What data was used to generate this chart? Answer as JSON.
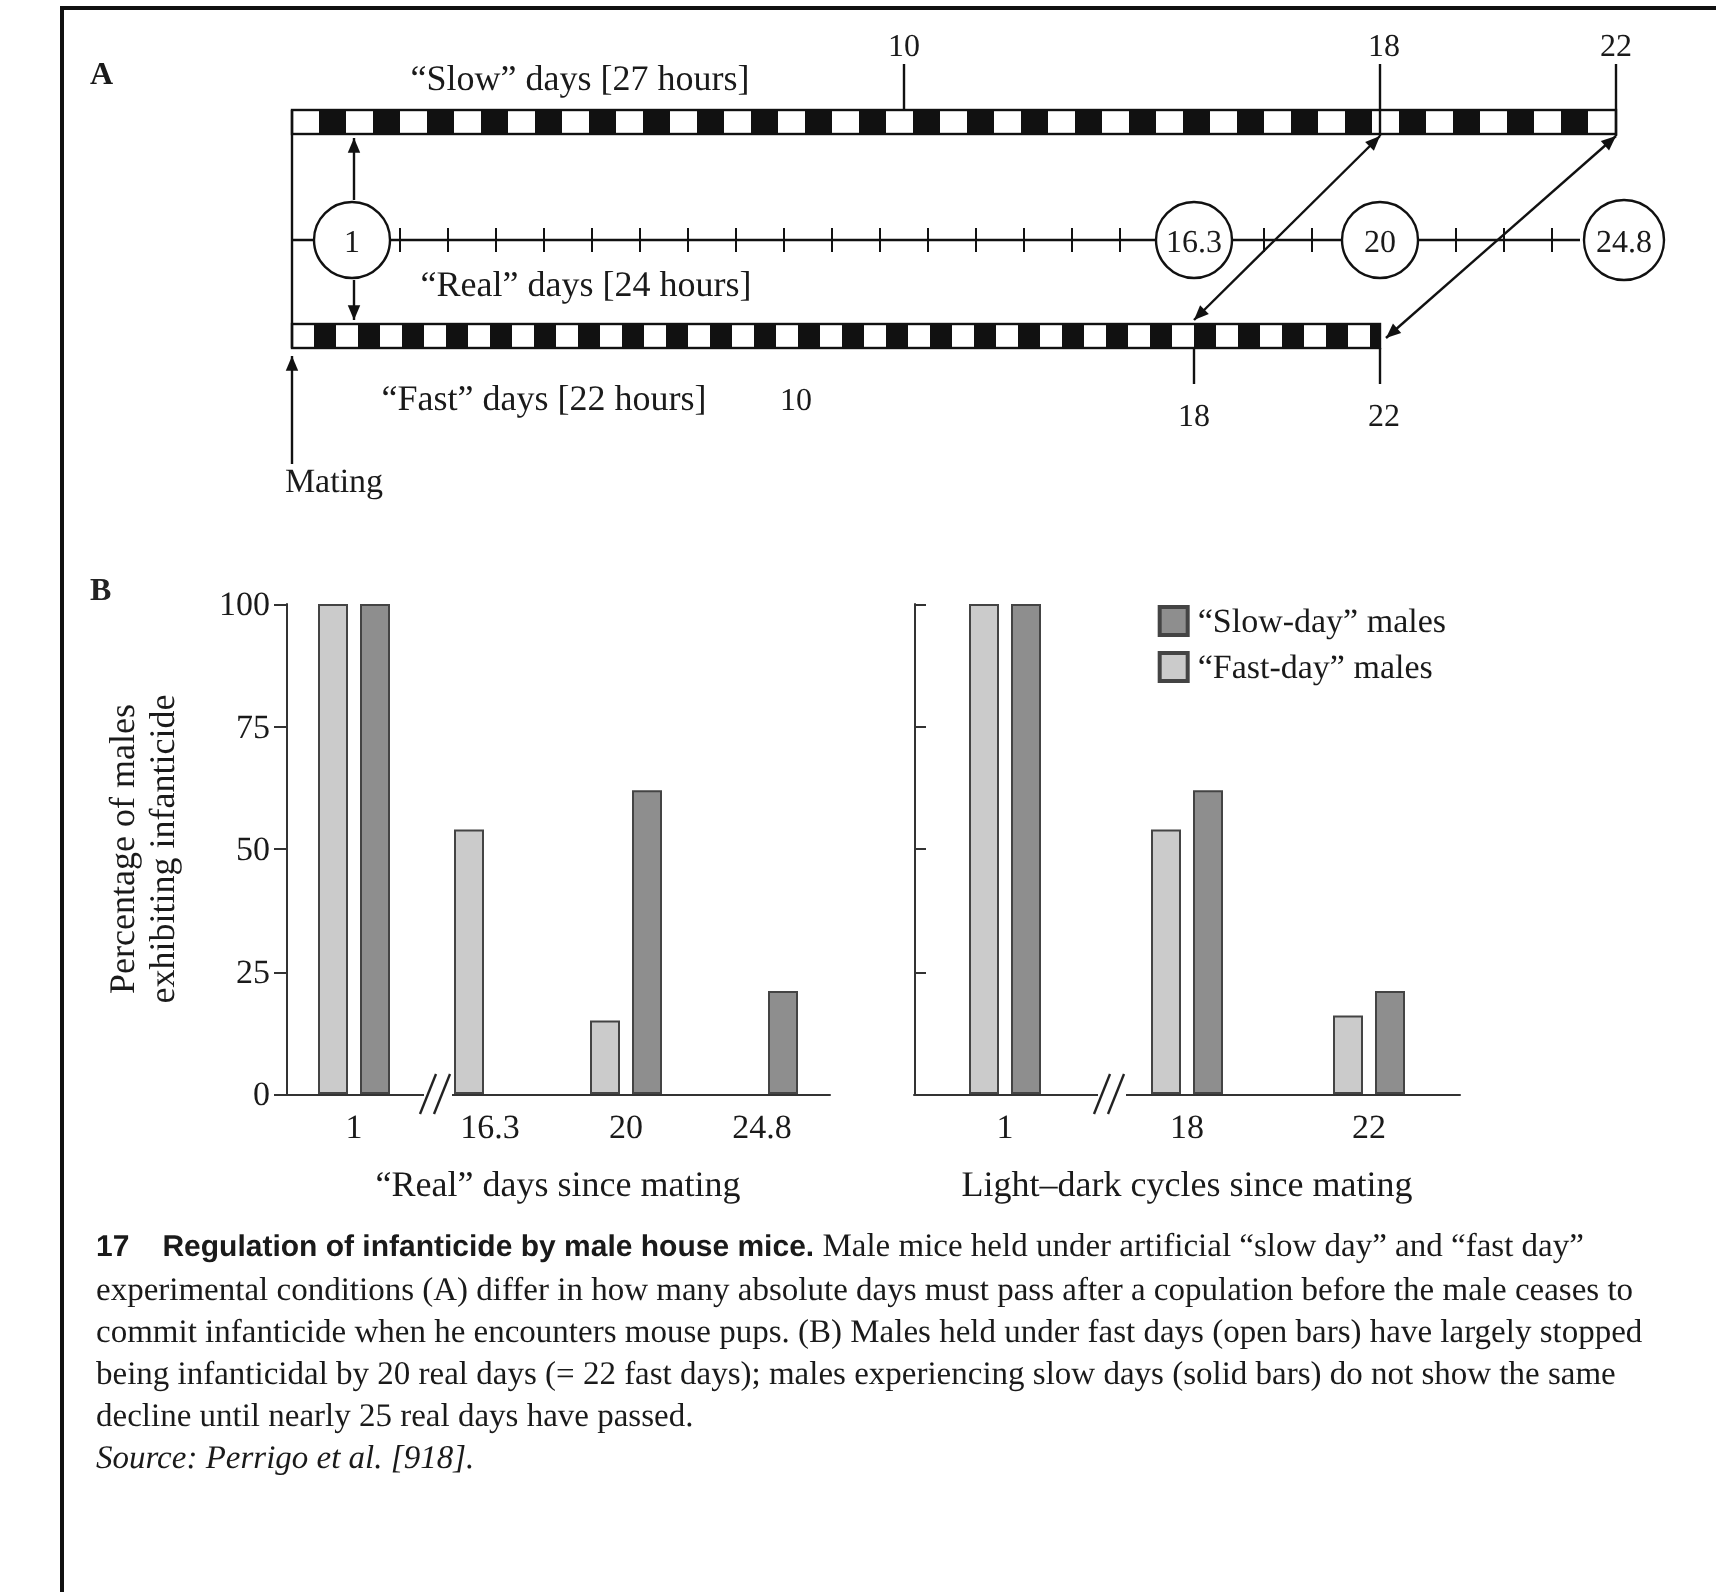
{
  "chart_data": [
    {
      "type": "other",
      "title": "A",
      "annotations": [
        "“Slow” days [27 hours]",
        "“Real” days [24 hours]",
        "“Fast” days [22 hours]",
        "Mating",
        "10",
        "18",
        "22",
        "1",
        "16.3",
        "20",
        "24.8",
        "10",
        "18",
        "22"
      ]
    },
    {
      "type": "bar",
      "title": "B",
      "categories": [
        "1",
        "16.3",
        "20",
        "24.8"
      ],
      "xlabel": "“Real” days since mating",
      "ylabel": "Percentage of males exhibiting infanticide",
      "ylim": [
        0,
        100
      ],
      "yticks": [
        0,
        25,
        50,
        75,
        100
      ],
      "grid": false,
      "legend": false,
      "series": [
        {
          "color": "#cbcbcb",
          "values": [
            100,
            54,
            15,
            null
          ]
        },
        {
          "color": "#8e8e8e",
          "values": [
            100,
            null,
            62,
            21
          ]
        }
      ]
    },
    {
      "type": "bar",
      "categories": [
        "1",
        "18",
        "22"
      ],
      "xlabel": "Light–dark cycles since mating",
      "ylim": [
        0,
        100
      ],
      "yticks": [
        0,
        25,
        50,
        75,
        100
      ],
      "tick_labels": "x",
      "grid": false,
      "legend": "top right",
      "series": [
        {
          "name": "“Fast-day” males",
          "color": "#cbcbcb",
          "values": [
            100,
            54,
            16
          ]
        },
        {
          "name": "“Slow-day” males",
          "color": "#8e8e8e",
          "values": [
            100,
            62,
            21
          ]
        }
      ]
    },
    {
      "type": "other",
      "annotations": [
        "17",
        "Regulation of infanticide by male house mice.",
        "Male mice held under artificial “slow day” and “fast day” experimental conditions (A) differ in how many absolute days must pass after a copulation before the male ceases to commit infanticide when he encounters mouse pups. (B) Males held under fast days (open bars) have largely stopped being infanticidal by 20 real days (= 22 fast days); males experiencing slow days (solid bars) do not show the same decline until nearly 25 real days have passed.",
        "Source: Perrigo et al. [918]."
      ]
    }
  ]
}
